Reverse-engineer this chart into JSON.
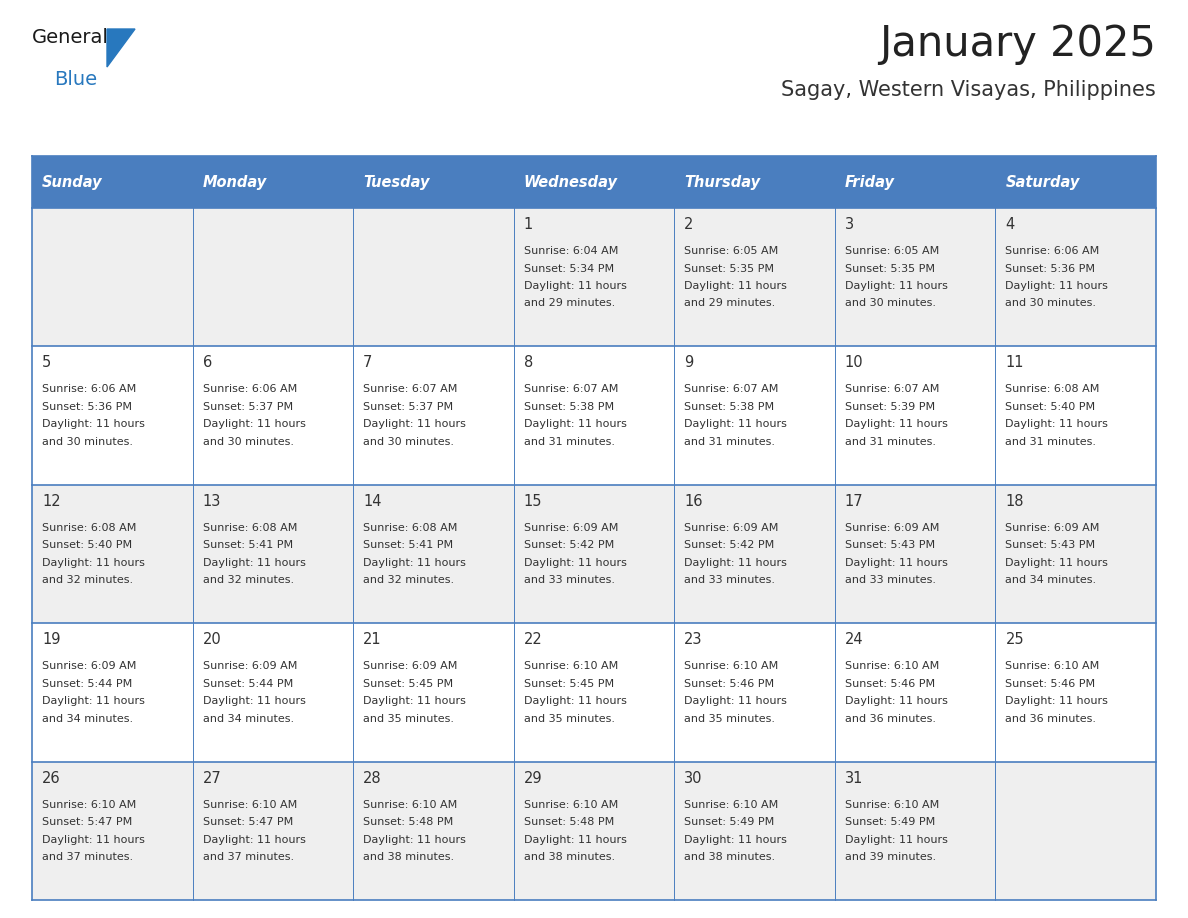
{
  "title": "January 2025",
  "subtitle": "Sagay, Western Visayas, Philippines",
  "header_bg_color": "#4a7ebf",
  "header_text_color": "#ffffff",
  "day_names": [
    "Sunday",
    "Monday",
    "Tuesday",
    "Wednesday",
    "Thursday",
    "Friday",
    "Saturday"
  ],
  "odd_row_bg": "#efefef",
  "even_row_bg": "#ffffff",
  "border_color": "#4a7ebf",
  "text_color": "#333333",
  "days": [
    {
      "day": 1,
      "col": 3,
      "row": 0,
      "sunrise": "6:04 AM",
      "sunset": "5:34 PM",
      "daylight_hours": 11,
      "daylight_minutes": 29
    },
    {
      "day": 2,
      "col": 4,
      "row": 0,
      "sunrise": "6:05 AM",
      "sunset": "5:35 PM",
      "daylight_hours": 11,
      "daylight_minutes": 29
    },
    {
      "day": 3,
      "col": 5,
      "row": 0,
      "sunrise": "6:05 AM",
      "sunset": "5:35 PM",
      "daylight_hours": 11,
      "daylight_minutes": 30
    },
    {
      "day": 4,
      "col": 6,
      "row": 0,
      "sunrise": "6:06 AM",
      "sunset": "5:36 PM",
      "daylight_hours": 11,
      "daylight_minutes": 30
    },
    {
      "day": 5,
      "col": 0,
      "row": 1,
      "sunrise": "6:06 AM",
      "sunset": "5:36 PM",
      "daylight_hours": 11,
      "daylight_minutes": 30
    },
    {
      "day": 6,
      "col": 1,
      "row": 1,
      "sunrise": "6:06 AM",
      "sunset": "5:37 PM",
      "daylight_hours": 11,
      "daylight_minutes": 30
    },
    {
      "day": 7,
      "col": 2,
      "row": 1,
      "sunrise": "6:07 AM",
      "sunset": "5:37 PM",
      "daylight_hours": 11,
      "daylight_minutes": 30
    },
    {
      "day": 8,
      "col": 3,
      "row": 1,
      "sunrise": "6:07 AM",
      "sunset": "5:38 PM",
      "daylight_hours": 11,
      "daylight_minutes": 31
    },
    {
      "day": 9,
      "col": 4,
      "row": 1,
      "sunrise": "6:07 AM",
      "sunset": "5:38 PM",
      "daylight_hours": 11,
      "daylight_minutes": 31
    },
    {
      "day": 10,
      "col": 5,
      "row": 1,
      "sunrise": "6:07 AM",
      "sunset": "5:39 PM",
      "daylight_hours": 11,
      "daylight_minutes": 31
    },
    {
      "day": 11,
      "col": 6,
      "row": 1,
      "sunrise": "6:08 AM",
      "sunset": "5:40 PM",
      "daylight_hours": 11,
      "daylight_minutes": 31
    },
    {
      "day": 12,
      "col": 0,
      "row": 2,
      "sunrise": "6:08 AM",
      "sunset": "5:40 PM",
      "daylight_hours": 11,
      "daylight_minutes": 32
    },
    {
      "day": 13,
      "col": 1,
      "row": 2,
      "sunrise": "6:08 AM",
      "sunset": "5:41 PM",
      "daylight_hours": 11,
      "daylight_minutes": 32
    },
    {
      "day": 14,
      "col": 2,
      "row": 2,
      "sunrise": "6:08 AM",
      "sunset": "5:41 PM",
      "daylight_hours": 11,
      "daylight_minutes": 32
    },
    {
      "day": 15,
      "col": 3,
      "row": 2,
      "sunrise": "6:09 AM",
      "sunset": "5:42 PM",
      "daylight_hours": 11,
      "daylight_minutes": 33
    },
    {
      "day": 16,
      "col": 4,
      "row": 2,
      "sunrise": "6:09 AM",
      "sunset": "5:42 PM",
      "daylight_hours": 11,
      "daylight_minutes": 33
    },
    {
      "day": 17,
      "col": 5,
      "row": 2,
      "sunrise": "6:09 AM",
      "sunset": "5:43 PM",
      "daylight_hours": 11,
      "daylight_minutes": 33
    },
    {
      "day": 18,
      "col": 6,
      "row": 2,
      "sunrise": "6:09 AM",
      "sunset": "5:43 PM",
      "daylight_hours": 11,
      "daylight_minutes": 34
    },
    {
      "day": 19,
      "col": 0,
      "row": 3,
      "sunrise": "6:09 AM",
      "sunset": "5:44 PM",
      "daylight_hours": 11,
      "daylight_minutes": 34
    },
    {
      "day": 20,
      "col": 1,
      "row": 3,
      "sunrise": "6:09 AM",
      "sunset": "5:44 PM",
      "daylight_hours": 11,
      "daylight_minutes": 34
    },
    {
      "day": 21,
      "col": 2,
      "row": 3,
      "sunrise": "6:09 AM",
      "sunset": "5:45 PM",
      "daylight_hours": 11,
      "daylight_minutes": 35
    },
    {
      "day": 22,
      "col": 3,
      "row": 3,
      "sunrise": "6:10 AM",
      "sunset": "5:45 PM",
      "daylight_hours": 11,
      "daylight_minutes": 35
    },
    {
      "day": 23,
      "col": 4,
      "row": 3,
      "sunrise": "6:10 AM",
      "sunset": "5:46 PM",
      "daylight_hours": 11,
      "daylight_minutes": 35
    },
    {
      "day": 24,
      "col": 5,
      "row": 3,
      "sunrise": "6:10 AM",
      "sunset": "5:46 PM",
      "daylight_hours": 11,
      "daylight_minutes": 36
    },
    {
      "day": 25,
      "col": 6,
      "row": 3,
      "sunrise": "6:10 AM",
      "sunset": "5:46 PM",
      "daylight_hours": 11,
      "daylight_minutes": 36
    },
    {
      "day": 26,
      "col": 0,
      "row": 4,
      "sunrise": "6:10 AM",
      "sunset": "5:47 PM",
      "daylight_hours": 11,
      "daylight_minutes": 37
    },
    {
      "day": 27,
      "col": 1,
      "row": 4,
      "sunrise": "6:10 AM",
      "sunset": "5:47 PM",
      "daylight_hours": 11,
      "daylight_minutes": 37
    },
    {
      "day": 28,
      "col": 2,
      "row": 4,
      "sunrise": "6:10 AM",
      "sunset": "5:48 PM",
      "daylight_hours": 11,
      "daylight_minutes": 38
    },
    {
      "day": 29,
      "col": 3,
      "row": 4,
      "sunrise": "6:10 AM",
      "sunset": "5:48 PM",
      "daylight_hours": 11,
      "daylight_minutes": 38
    },
    {
      "day": 30,
      "col": 4,
      "row": 4,
      "sunrise": "6:10 AM",
      "sunset": "5:49 PM",
      "daylight_hours": 11,
      "daylight_minutes": 38
    },
    {
      "day": 31,
      "col": 5,
      "row": 4,
      "sunrise": "6:10 AM",
      "sunset": "5:49 PM",
      "daylight_hours": 11,
      "daylight_minutes": 39
    }
  ],
  "logo_text_general": "General",
  "logo_text_blue": "Blue",
  "logo_color_general": "#1a1a1a",
  "logo_color_blue": "#2878be",
  "logo_triangle_color": "#2878be",
  "fig_width": 11.88,
  "fig_height": 9.18,
  "dpi": 100
}
